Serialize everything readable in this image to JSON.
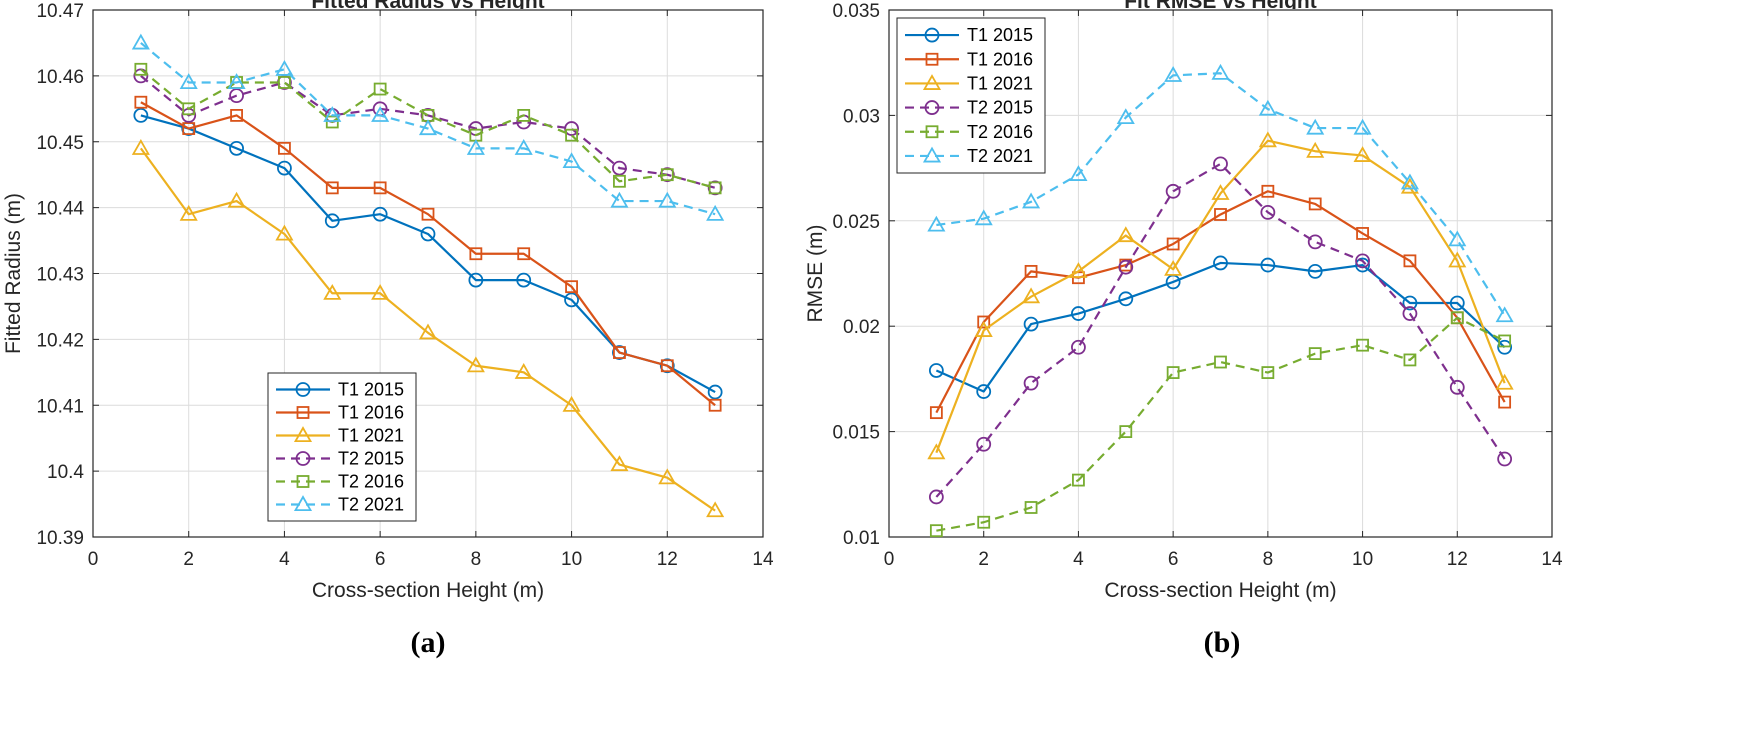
{
  "chart_data": [
    {
      "type": "line",
      "panel_label": "(a)",
      "title": "Fitted Radius vs Height",
      "xlabel": "Cross-section Height (m)",
      "ylabel": "Fitted Radius (m)",
      "xlim": [
        0,
        14
      ],
      "ylim": [
        10.39,
        10.47
      ],
      "xticks": [
        0,
        2,
        4,
        6,
        8,
        10,
        12,
        14
      ],
      "yticks": [
        10.39,
        10.4,
        10.41,
        10.42,
        10.43,
        10.44,
        10.45,
        10.46,
        10.47
      ],
      "xtick_labels": [
        "0",
        "2",
        "4",
        "6",
        "8",
        "10",
        "12",
        "14"
      ],
      "ytick_labels": [
        "10.39",
        "10.4",
        "10.41",
        "10.42",
        "10.43",
        "10.44",
        "10.45",
        "10.46",
        "10.47"
      ],
      "grid": true,
      "legend_position": "bottom-center",
      "x": [
        1,
        2,
        3,
        4,
        5,
        6,
        7,
        8,
        9,
        10,
        11,
        12,
        13
      ],
      "series": [
        {
          "name": "T1 2015",
          "color": "#0072BD",
          "marker": "circle",
          "dash": "solid",
          "values": [
            10.454,
            10.452,
            10.449,
            10.446,
            10.438,
            10.439,
            10.436,
            10.429,
            10.429,
            10.426,
            10.418,
            10.416,
            10.412
          ]
        },
        {
          "name": "T1 2016",
          "color": "#D95319",
          "marker": "square",
          "dash": "solid",
          "values": [
            10.456,
            10.452,
            10.454,
            10.449,
            10.443,
            10.443,
            10.439,
            10.433,
            10.433,
            10.428,
            10.418,
            10.416,
            10.41
          ]
        },
        {
          "name": "T1 2021",
          "color": "#EDB120",
          "marker": "triangle",
          "dash": "solid",
          "values": [
            10.449,
            10.439,
            10.441,
            10.436,
            10.427,
            10.427,
            10.421,
            10.416,
            10.415,
            10.41,
            10.401,
            10.399,
            10.394
          ]
        },
        {
          "name": "T2 2015",
          "color": "#7E2F8E",
          "marker": "circle",
          "dash": "dashed",
          "values": [
            10.46,
            10.454,
            10.457,
            10.459,
            10.454,
            10.455,
            10.454,
            10.452,
            10.453,
            10.452,
            10.446,
            10.445,
            10.443
          ]
        },
        {
          "name": "T2 2016",
          "color": "#77AC30",
          "marker": "square",
          "dash": "dashed",
          "values": [
            10.461,
            10.455,
            10.459,
            10.459,
            10.453,
            10.458,
            10.454,
            10.451,
            10.454,
            10.451,
            10.444,
            10.445,
            10.443
          ]
        },
        {
          "name": "T2 2021",
          "color": "#4DBEEE",
          "marker": "triangle",
          "dash": "dashed",
          "values": [
            10.465,
            10.459,
            10.459,
            10.461,
            10.454,
            10.454,
            10.452,
            10.449,
            10.449,
            10.447,
            10.441,
            10.441,
            10.439
          ]
        }
      ]
    },
    {
      "type": "line",
      "panel_label": "(b)",
      "title": "Fit RMSE vs Height",
      "xlabel": "Cross-section Height (m)",
      "ylabel": "RMSE (m)",
      "xlim": [
        0,
        14
      ],
      "ylim": [
        0.01,
        0.035
      ],
      "xticks": [
        0,
        2,
        4,
        6,
        8,
        10,
        12,
        14
      ],
      "yticks": [
        0.01,
        0.015,
        0.02,
        0.025,
        0.03,
        0.035
      ],
      "xtick_labels": [
        "0",
        "2",
        "4",
        "6",
        "8",
        "10",
        "12",
        "14"
      ],
      "ytick_labels": [
        "0.01",
        "0.015",
        "0.02",
        "0.025",
        "0.03",
        "0.035"
      ],
      "grid": true,
      "legend_position": "top-left",
      "x": [
        1,
        2,
        3,
        4,
        5,
        6,
        7,
        8,
        9,
        10,
        11,
        12,
        13
      ],
      "series": [
        {
          "name": "T1 2015",
          "color": "#0072BD",
          "marker": "circle",
          "dash": "solid",
          "values": [
            0.0179,
            0.0169,
            0.0201,
            0.0206,
            0.0213,
            0.0221,
            0.023,
            0.0229,
            0.0226,
            0.0229,
            0.0211,
            0.0211,
            0.019
          ]
        },
        {
          "name": "T1 2016",
          "color": "#D95319",
          "marker": "square",
          "dash": "solid",
          "values": [
            0.0159,
            0.0202,
            0.0226,
            0.0223,
            0.0229,
            0.0239,
            0.0253,
            0.0264,
            0.0258,
            0.0244,
            0.0231,
            0.0204,
            0.0164
          ]
        },
        {
          "name": "T1 2021",
          "color": "#EDB120",
          "marker": "triangle",
          "dash": "solid",
          "values": [
            0.014,
            0.0198,
            0.0214,
            0.0226,
            0.0243,
            0.0227,
            0.0263,
            0.0288,
            0.0283,
            0.0281,
            0.0266,
            0.0231,
            0.0173
          ]
        },
        {
          "name": "T2 2015",
          "color": "#7E2F8E",
          "marker": "circle",
          "dash": "dashed",
          "values": [
            0.0119,
            0.0144,
            0.0173,
            0.019,
            0.0228,
            0.0264,
            0.0277,
            0.0254,
            0.024,
            0.0231,
            0.0206,
            0.0171,
            0.0137
          ]
        },
        {
          "name": "T2 2016",
          "color": "#77AC30",
          "marker": "square",
          "dash": "dashed",
          "values": [
            0.0103,
            0.0107,
            0.0114,
            0.0127,
            0.015,
            0.0178,
            0.0183,
            0.0178,
            0.0187,
            0.0191,
            0.0184,
            0.0204,
            0.0193
          ]
        },
        {
          "name": "T2 2021",
          "color": "#4DBEEE",
          "marker": "triangle",
          "dash": "dashed",
          "values": [
            0.0248,
            0.0251,
            0.0259,
            0.0272,
            0.0299,
            0.0319,
            0.032,
            0.0303,
            0.0294,
            0.0294,
            0.0268,
            0.0241,
            0.0205
          ]
        }
      ]
    }
  ]
}
